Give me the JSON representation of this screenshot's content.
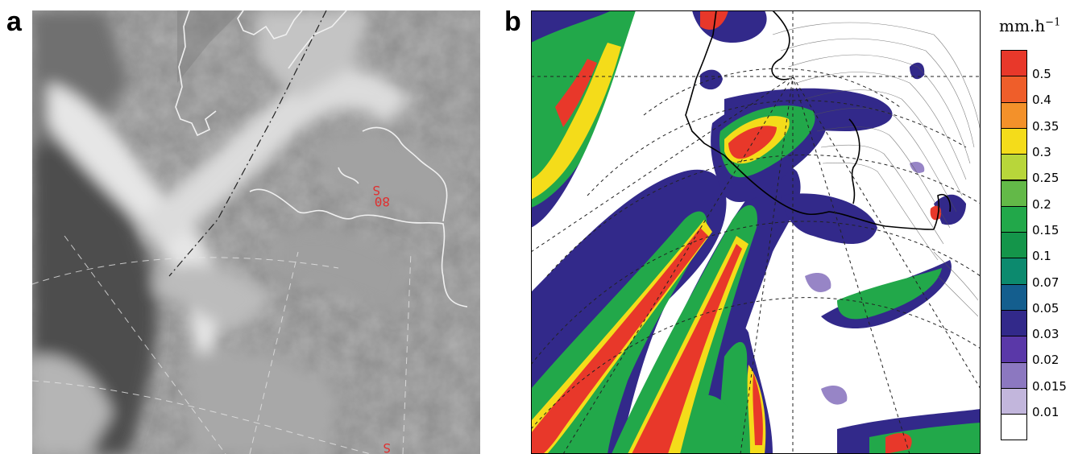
{
  "panels": {
    "a": {
      "label": "a",
      "overlay_labels": [
        "80",
        "S",
        "S"
      ]
    },
    "b": {
      "label": "b"
    }
  },
  "legend": {
    "unit_text": "mm.h",
    "unit_exponent": "−1",
    "levels": [
      {
        "value": "0.5",
        "color": "#e8382a"
      },
      {
        "value": "0.4",
        "color": "#ef5e2a"
      },
      {
        "value": "0.35",
        "color": "#f3912a"
      },
      {
        "value": "0.3",
        "color": "#f4dc1a"
      },
      {
        "value": "0.25",
        "color": "#b8d63a"
      },
      {
        "value": "0.2",
        "color": "#63b948"
      },
      {
        "value": "0.15",
        "color": "#22a84a"
      },
      {
        "value": "0.1",
        "color": "#14954a"
      },
      {
        "value": "0.07",
        "color": "#0c8a6e"
      },
      {
        "value": "0.05",
        "color": "#145e8e"
      },
      {
        "value": "0.03",
        "color": "#32298a"
      },
      {
        "value": "0.02",
        "color": "#5a38a8"
      },
      {
        "value": "0.015",
        "color": "#8c78c0"
      },
      {
        "value": "0.01",
        "color": "#c2b6dc"
      },
      {
        "value": "",
        "color": "#ffffff"
      }
    ]
  }
}
